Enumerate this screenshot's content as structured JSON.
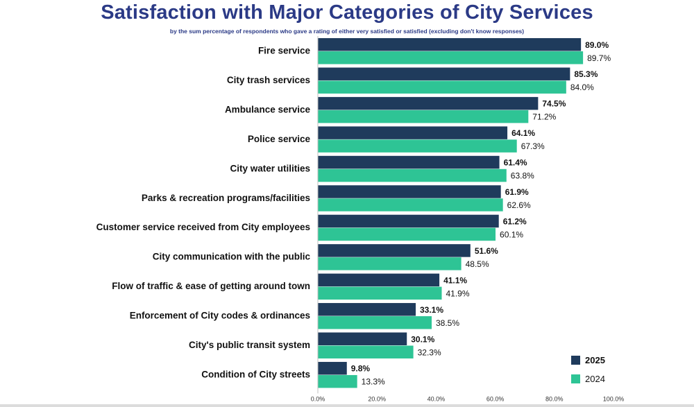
{
  "chart_data": {
    "type": "bar",
    "orientation": "horizontal",
    "title": "Satisfaction with Major Categories of City Services",
    "subtitle": "by the sum percentage of respondents who gave a rating of either very satisfied or satisfied (excluding don't know responses)",
    "categories": [
      "Fire service",
      "City trash services",
      "Ambulance service",
      "Police service",
      "City water utilities",
      "Parks & recreation programs/facilities",
      "Customer service received from City employees",
      "City communication with the public",
      "Flow of traffic & ease of getting around town",
      "Enforcement of City codes & ordinances",
      "City's public transit system",
      "Condition of City streets"
    ],
    "series": [
      {
        "name": "2025",
        "color": "#1f3b5c",
        "values": [
          89.0,
          85.3,
          74.5,
          64.1,
          61.4,
          61.9,
          61.2,
          51.6,
          41.1,
          33.1,
          30.1,
          9.8
        ],
        "labels": [
          "89.0%",
          "85.3%",
          "74.5%",
          "64.1%",
          "61.4%",
          "61.9%",
          "61.2%",
          "51.6%",
          "41.1%",
          "33.1%",
          "30.1%",
          "9.8%"
        ]
      },
      {
        "name": "2024",
        "color": "#2ec495",
        "values": [
          89.7,
          84.0,
          71.2,
          67.3,
          63.8,
          62.6,
          60.1,
          48.5,
          41.9,
          38.5,
          32.3,
          13.3
        ],
        "labels": [
          "89.7%",
          "84.0%",
          "71.2%",
          "67.3%",
          "63.8%",
          "62.6%",
          "60.1%",
          "48.5%",
          "41.9%",
          "38.5%",
          "32.3%",
          "13.3%"
        ]
      }
    ],
    "xlim": [
      0,
      100
    ],
    "xticks": [
      0,
      20,
      40,
      60,
      80,
      100
    ],
    "xtick_labels": [
      "0.0%",
      "20.0%",
      "40.0%",
      "60.0%",
      "80.0%",
      "100.0%"
    ],
    "legend": {
      "position": "bottom-right",
      "entries": [
        "2025",
        "2024"
      ]
    },
    "grid": false
  }
}
